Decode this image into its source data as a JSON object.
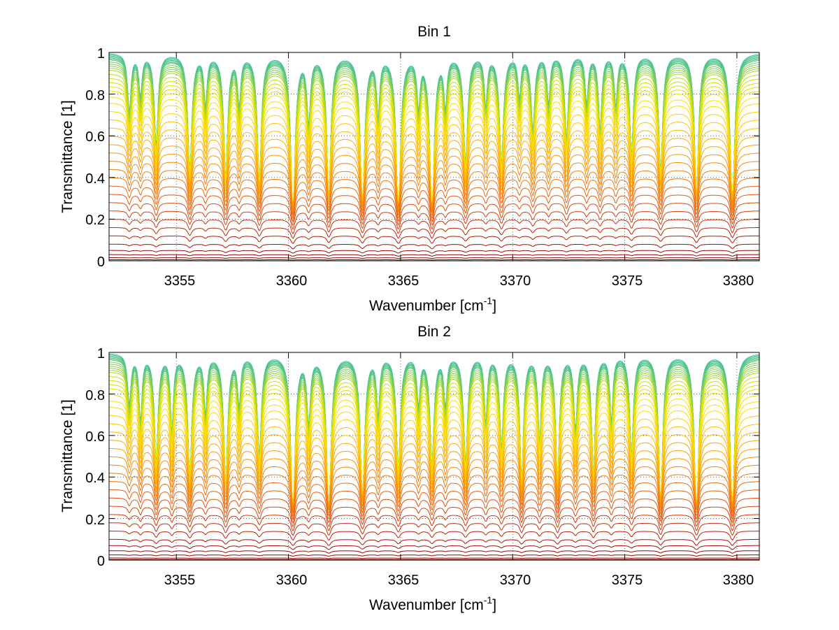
{
  "chart_data": [
    {
      "type": "line",
      "title": "Bin 1",
      "xlabel": "Wavenumber [cm",
      "xlabel_sup": "-1",
      "xlabel_end": "]",
      "ylabel": "Transmittance [1]",
      "xlim": [
        3352,
        3381
      ],
      "ylim": [
        0,
        1
      ],
      "xticks": [
        3355,
        3360,
        3365,
        3370,
        3375,
        3380
      ],
      "xtick_labels": [
        "3355",
        "3360",
        "3365",
        "3370",
        "3375",
        "3380"
      ],
      "yticks": [
        0,
        0.2,
        0.4,
        0.6,
        0.8,
        1
      ],
      "ytick_labels": [
        "0",
        "0.2",
        "0.4",
        "0.6",
        "0.8",
        "1"
      ],
      "grid": true,
      "colormap": [
        "#8b0000",
        "#b01a00",
        "#d2380a",
        "#e85c0a",
        "#f5800a",
        "#ffa000",
        "#ffc000",
        "#ffe000",
        "#c8e000",
        "#40c0a0"
      ],
      "absorption_lines": [
        {
          "center": 3352.9,
          "depth": 0.35,
          "width": 0.09
        },
        {
          "center": 3353.4,
          "depth": 0.25,
          "width": 0.08
        },
        {
          "center": 3354.1,
          "depth": 0.55,
          "width": 0.1
        },
        {
          "center": 3355.6,
          "depth": 0.7,
          "width": 0.11
        },
        {
          "center": 3356.3,
          "depth": 0.3,
          "width": 0.08
        },
        {
          "center": 3357.2,
          "depth": 0.72,
          "width": 0.11
        },
        {
          "center": 3357.8,
          "depth": 0.3,
          "width": 0.08
        },
        {
          "center": 3358.7,
          "depth": 0.75,
          "width": 0.11
        },
        {
          "center": 3360.2,
          "depth": 0.95,
          "width": 0.12
        },
        {
          "center": 3360.9,
          "depth": 0.4,
          "width": 0.09
        },
        {
          "center": 3361.8,
          "depth": 0.85,
          "width": 0.11
        },
        {
          "center": 3363.3,
          "depth": 0.9,
          "width": 0.12
        },
        {
          "center": 3364.0,
          "depth": 0.35,
          "width": 0.08
        },
        {
          "center": 3364.9,
          "depth": 0.95,
          "width": 0.12
        },
        {
          "center": 3365.8,
          "depth": 0.3,
          "width": 0.08
        },
        {
          "center": 3366.4,
          "depth": 0.95,
          "width": 0.12
        },
        {
          "center": 3367.0,
          "depth": 0.3,
          "width": 0.08
        },
        {
          "center": 3367.9,
          "depth": 0.65,
          "width": 0.11
        },
        {
          "center": 3368.8,
          "depth": 0.3,
          "width": 0.08
        },
        {
          "center": 3369.5,
          "depth": 0.65,
          "width": 0.11
        },
        {
          "center": 3370.3,
          "depth": 0.25,
          "width": 0.08
        },
        {
          "center": 3370.9,
          "depth": 0.45,
          "width": 0.1
        },
        {
          "center": 3371.6,
          "depth": 0.3,
          "width": 0.08
        },
        {
          "center": 3372.4,
          "depth": 0.5,
          "width": 0.1
        },
        {
          "center": 3373.3,
          "depth": 0.3,
          "width": 0.08
        },
        {
          "center": 3373.9,
          "depth": 0.45,
          "width": 0.09
        },
        {
          "center": 3374.6,
          "depth": 0.3,
          "width": 0.08
        },
        {
          "center": 3375.3,
          "depth": 0.6,
          "width": 0.1
        },
        {
          "center": 3376.6,
          "depth": 0.7,
          "width": 0.11
        },
        {
          "center": 3378.2,
          "depth": 0.85,
          "width": 0.11
        },
        {
          "center": 3379.8,
          "depth": 0.9,
          "width": 0.12
        }
      ],
      "baselines": [
        1,
        0.995,
        0.99,
        0.985,
        0.98,
        0.975,
        0.97,
        0.96,
        0.95,
        0.94,
        0.93,
        0.92,
        0.9,
        0.88,
        0.86,
        0.84,
        0.82,
        0.79,
        0.76,
        0.72,
        0.68,
        0.64,
        0.6,
        0.56,
        0.52,
        0.48,
        0.44,
        0.4,
        0.36,
        0.32,
        0.28,
        0.24,
        0.2,
        0.16,
        0.12,
        0.08,
        0.05,
        0.03,
        0.015,
        0.005
      ]
    },
    {
      "type": "line",
      "title": "Bin 2",
      "xlabel": "Wavenumber [cm",
      "xlabel_sup": "-1",
      "xlabel_end": "]",
      "ylabel": "Transmittance [1]",
      "xlim": [
        3352,
        3381
      ],
      "ylim": [
        0,
        1
      ],
      "xticks": [
        3355,
        3360,
        3365,
        3370,
        3375,
        3380
      ],
      "xtick_labels": [
        "3355",
        "3360",
        "3365",
        "3370",
        "3375",
        "3380"
      ],
      "yticks": [
        0,
        0.2,
        0.4,
        0.6,
        0.8,
        1
      ],
      "ytick_labels": [
        "0",
        "0.2",
        "0.4",
        "0.6",
        "0.8",
        "1"
      ],
      "grid": true,
      "colormap": [
        "#8b0000",
        "#b01a00",
        "#d2380a",
        "#e85c0a",
        "#f5800a",
        "#ffa000",
        "#ffc000",
        "#ffe000",
        "#c8e000",
        "#40c0a0"
      ],
      "absorption_lines": [
        {
          "center": 3352.9,
          "depth": 0.3,
          "width": 0.09
        },
        {
          "center": 3353.4,
          "depth": 0.4,
          "width": 0.08
        },
        {
          "center": 3354.1,
          "depth": 0.65,
          "width": 0.1
        },
        {
          "center": 3354.8,
          "depth": 0.45,
          "width": 0.08
        },
        {
          "center": 3355.6,
          "depth": 0.72,
          "width": 0.11
        },
        {
          "center": 3356.3,
          "depth": 0.35,
          "width": 0.08
        },
        {
          "center": 3357.2,
          "depth": 0.75,
          "width": 0.11
        },
        {
          "center": 3357.8,
          "depth": 0.3,
          "width": 0.08
        },
        {
          "center": 3358.7,
          "depth": 0.6,
          "width": 0.11
        },
        {
          "center": 3360.2,
          "depth": 0.95,
          "width": 0.12
        },
        {
          "center": 3360.9,
          "depth": 0.4,
          "width": 0.09
        },
        {
          "center": 3361.8,
          "depth": 0.95,
          "width": 0.12
        },
        {
          "center": 3363.3,
          "depth": 0.85,
          "width": 0.12
        },
        {
          "center": 3364.0,
          "depth": 0.35,
          "width": 0.08
        },
        {
          "center": 3364.9,
          "depth": 0.7,
          "width": 0.11
        },
        {
          "center": 3365.8,
          "depth": 0.3,
          "width": 0.08
        },
        {
          "center": 3366.4,
          "depth": 0.65,
          "width": 0.11
        },
        {
          "center": 3367.0,
          "depth": 0.3,
          "width": 0.08
        },
        {
          "center": 3367.9,
          "depth": 0.65,
          "width": 0.11
        },
        {
          "center": 3368.8,
          "depth": 0.4,
          "width": 0.08
        },
        {
          "center": 3369.5,
          "depth": 0.55,
          "width": 0.1
        },
        {
          "center": 3370.4,
          "depth": 0.75,
          "width": 0.1
        },
        {
          "center": 3371.2,
          "depth": 0.5,
          "width": 0.09
        },
        {
          "center": 3372.0,
          "depth": 0.75,
          "width": 0.1
        },
        {
          "center": 3372.8,
          "depth": 0.45,
          "width": 0.09
        },
        {
          "center": 3373.6,
          "depth": 0.7,
          "width": 0.1
        },
        {
          "center": 3374.4,
          "depth": 0.4,
          "width": 0.08
        },
        {
          "center": 3375.3,
          "depth": 0.6,
          "width": 0.1
        },
        {
          "center": 3376.6,
          "depth": 0.9,
          "width": 0.11
        },
        {
          "center": 3378.2,
          "depth": 0.95,
          "width": 0.12
        },
        {
          "center": 3379.8,
          "depth": 0.95,
          "width": 0.12
        }
      ],
      "baselines": [
        1,
        0.995,
        0.99,
        0.985,
        0.98,
        0.975,
        0.97,
        0.96,
        0.95,
        0.94,
        0.93,
        0.92,
        0.91,
        0.89,
        0.87,
        0.85,
        0.83,
        0.8,
        0.77,
        0.74,
        0.7,
        0.66,
        0.62,
        0.58,
        0.54,
        0.5,
        0.46,
        0.42,
        0.38,
        0.34,
        0.3,
        0.26,
        0.22,
        0.18,
        0.14,
        0.1,
        0.07,
        0.045,
        0.025,
        0.01,
        0.003
      ]
    }
  ]
}
